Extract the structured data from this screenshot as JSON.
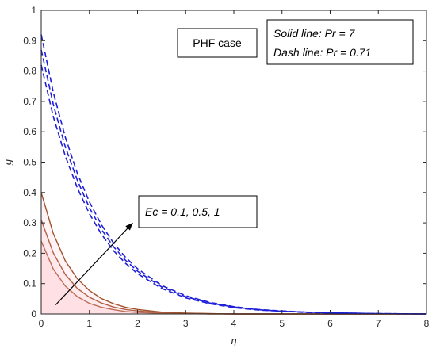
{
  "chart_data": {
    "type": "line",
    "title": "",
    "xlabel": "η",
    "ylabel": "g",
    "xlim": [
      0,
      8
    ],
    "ylim": [
      0,
      1
    ],
    "xticks": [
      0,
      1,
      2,
      3,
      4,
      5,
      6,
      7,
      8
    ],
    "yticks": [
      0,
      0.1,
      0.2,
      0.3,
      0.4,
      0.5,
      0.6,
      0.7,
      0.8,
      0.9,
      1
    ],
    "xtick_labels": [
      "0",
      "1",
      "2",
      "3",
      "4",
      "5",
      "6",
      "7",
      "8"
    ],
    "ytick_labels": [
      "0",
      "0.1",
      "0.2",
      "0.3",
      "0.4",
      "0.5",
      "0.6",
      "0.7",
      "0.8",
      "0.9",
      "1"
    ],
    "grid": false,
    "colors": {
      "solid": "#a0522d",
      "dashed": "#1f1fd9",
      "arrow": "#000000"
    },
    "x": [
      0,
      0.25,
      0.5,
      0.75,
      1,
      1.25,
      1.5,
      1.75,
      2,
      2.5,
      3,
      3.5,
      4,
      4.5,
      5,
      5.5,
      6,
      7,
      8
    ],
    "series": [
      {
        "style": "solid",
        "values": [
          0.24,
          0.148,
          0.092,
          0.057,
          0.035,
          0.022,
          0.014,
          0.008,
          0.005,
          0.002,
          0.001,
          0,
          0,
          0,
          0,
          0,
          0,
          0,
          0
        ]
      },
      {
        "style": "solid",
        "values": [
          0.31,
          0.201,
          0.13,
          0.084,
          0.055,
          0.036,
          0.023,
          0.015,
          0.01,
          0.004,
          0.002,
          0.001,
          0,
          0,
          0,
          0,
          0,
          0,
          0
        ]
      },
      {
        "style": "solid",
        "values": [
          0.4,
          0.265,
          0.175,
          0.116,
          0.077,
          0.051,
          0.034,
          0.022,
          0.015,
          0.006,
          0.003,
          0.001,
          0,
          0,
          0,
          0,
          0,
          0,
          0
        ]
      },
      {
        "style": "dashed",
        "values": [
          0.82,
          0.65,
          0.52,
          0.415,
          0.33,
          0.263,
          0.209,
          0.167,
          0.133,
          0.084,
          0.053,
          0.034,
          0.021,
          0.013,
          0.009,
          0.005,
          0.003,
          0.001,
          0
        ]
      },
      {
        "style": "dashed",
        "values": [
          0.87,
          0.69,
          0.55,
          0.44,
          0.35,
          0.279,
          0.222,
          0.177,
          0.141,
          0.089,
          0.057,
          0.036,
          0.023,
          0.014,
          0.009,
          0.006,
          0.004,
          0.001,
          0
        ]
      },
      {
        "style": "dashed",
        "values": [
          0.92,
          0.73,
          0.582,
          0.463,
          0.369,
          0.294,
          0.234,
          0.187,
          0.149,
          0.094,
          0.06,
          0.038,
          0.024,
          0.015,
          0.01,
          0.006,
          0.004,
          0.001,
          0
        ]
      }
    ],
    "annotations": {
      "case_label": "PHF case",
      "legend_solid": "Solid line: Pr = 7",
      "legend_dash": "Dash line: Pr = 0.71",
      "ec_label": "Ec = 0.1, 0.5, 1",
      "arrow": {
        "from": [
          0.3,
          0.03
        ],
        "to": [
          1.9,
          0.3
        ]
      }
    }
  }
}
